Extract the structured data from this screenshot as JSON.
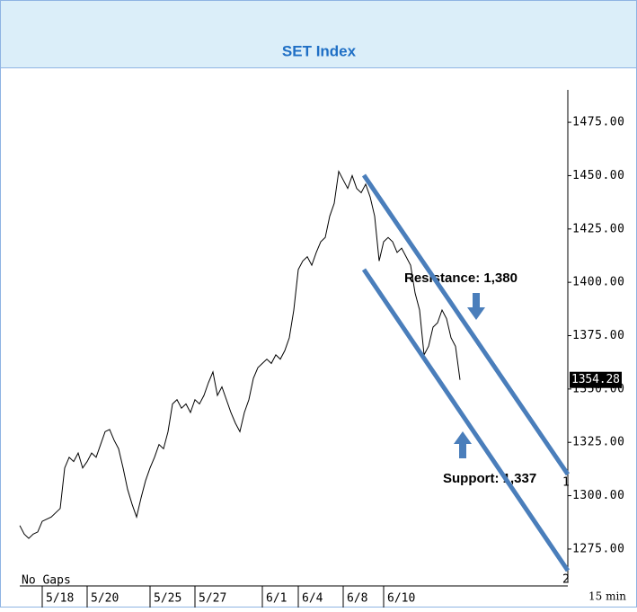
{
  "chart_data": {
    "type": "line",
    "title": "SET Index",
    "color": "#000000",
    "values": [
      1286,
      1282,
      1280,
      1282,
      1283,
      1288,
      1289,
      1290,
      1292,
      1294,
      1313,
      1318,
      1316,
      1320,
      1313,
      1316,
      1320,
      1318,
      1324,
      1330,
      1331,
      1326,
      1322,
      1313,
      1303,
      1296,
      1290,
      1299,
      1307,
      1313,
      1318,
      1324,
      1322,
      1330,
      1343,
      1345,
      1341,
      1343,
      1339,
      1345,
      1343,
      1347,
      1353,
      1358,
      1347,
      1351,
      1345,
      1339,
      1334,
      1330,
      1339,
      1345,
      1355,
      1360,
      1362,
      1364,
      1362,
      1366,
      1364,
      1368,
      1374,
      1387,
      1406,
      1410,
      1412,
      1408,
      1414,
      1419,
      1421,
      1431,
      1437,
      1452,
      1448,
      1444,
      1450,
      1444,
      1442,
      1446,
      1440,
      1431,
      1410,
      1419,
      1421,
      1419,
      1414,
      1416,
      1412,
      1408,
      1395,
      1387,
      1366,
      1370,
      1379,
      1381,
      1387,
      1383,
      1374,
      1370,
      1354.28
    ],
    "xlim": [
      0,
      122
    ],
    "xticks": [
      {
        "value": 5,
        "label": "5/18"
      },
      {
        "value": 15,
        "label": "5/20"
      },
      {
        "value": 29,
        "label": "5/25"
      },
      {
        "value": 39,
        "label": "5/27"
      },
      {
        "value": 54,
        "label": "6/1"
      },
      {
        "value": 62,
        "label": "6/4"
      },
      {
        "value": 72,
        "label": "6/8"
      },
      {
        "value": 81,
        "label": "6/10"
      }
    ],
    "ylim": [
      1263.6,
      1490.2
    ],
    "yticks": [
      {
        "value": 1275,
        "label": "1275.00"
      },
      {
        "value": 1300,
        "label": "1300.00"
      },
      {
        "value": 1325,
        "label": "1325.00"
      },
      {
        "value": 1350,
        "label": "1350.00"
      },
      {
        "value": 1375,
        "label": "1375.00"
      },
      {
        "value": 1400,
        "label": "1400.00"
      },
      {
        "value": 1425,
        "label": "1425.00"
      },
      {
        "value": 1450,
        "label": "1450.00"
      },
      {
        "value": 1475,
        "label": "1475.00"
      }
    ],
    "trend_lines": [
      {
        "color": "#4a7ebb",
        "x": [
          76.6,
          122
        ],
        "y": [
          1450.2,
          1310
        ]
      },
      {
        "color": "#4a7ebb",
        "x": [
          76.6,
          122
        ],
        "y": [
          1406,
          1264.9
        ]
      }
    ],
    "annotations": [
      "Resistance:  1,380",
      "Support: 1,337"
    ],
    "gap_note": "No Gaps",
    "interval": "15 min",
    "pane_labels": [
      "1",
      "2"
    ]
  }
}
